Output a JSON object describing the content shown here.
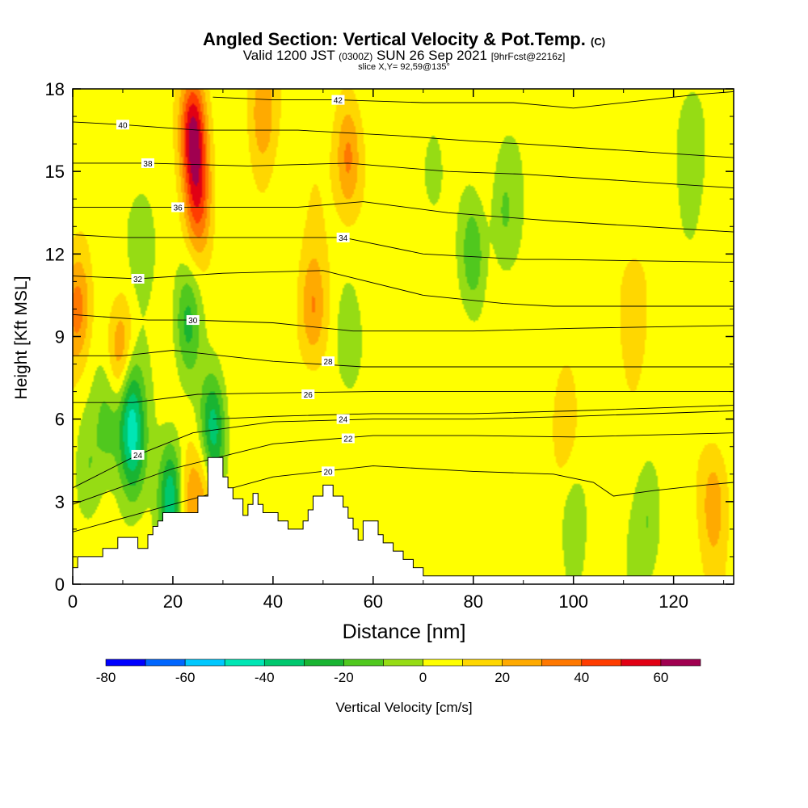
{
  "chart_data": {
    "type": "heatmap",
    "title": "Angled Section: Vertical Velocity & Pot.Temp.",
    "title_unit": "(C)",
    "subtitle_valid": "Valid 1200 JST",
    "subtitle_utc": "(0300Z)",
    "subtitle_date": "SUN 26 Sep 2021",
    "subtitle_fcst": "[9hrFcst@2216z]",
    "slice_label": "slice X,Y= 92,59@135°",
    "xlabel": "Distance [nm]",
    "ylabel": "Height [Kft MSL]",
    "xlim": [
      0,
      132
    ],
    "ylim": [
      0,
      18
    ],
    "x_ticks": [
      "0",
      "20",
      "40",
      "60",
      "80",
      "100",
      "120"
    ],
    "y_ticks": [
      "0",
      "3",
      "6",
      "9",
      "12",
      "15",
      "18"
    ],
    "colorbar": {
      "label": "Vertical Velocity [cm/s]",
      "tick_labels": [
        "-80",
        "-60",
        "-40",
        "-20",
        "0",
        "20",
        "40",
        "60"
      ],
      "bounds": [
        -80,
        -70,
        -60,
        -50,
        -40,
        -30,
        -20,
        -10,
        0,
        10,
        20,
        30,
        40,
        50,
        60,
        70
      ],
      "colors": [
        "#0000ff",
        "#0066ff",
        "#00c8ff",
        "#00e6b4",
        "#00c86e",
        "#19b432",
        "#50c81e",
        "#96dc14",
        "#ffff00",
        "#ffd700",
        "#ffaa00",
        "#ff7800",
        "#ff3c00",
        "#e10014",
        "#a00050",
        "#640096"
      ]
    },
    "background_w_cm_s": 5,
    "w_features": [
      {
        "x": 24,
        "y": 16.5,
        "w": 55
      },
      {
        "x": 25,
        "y": 14.0,
        "w": 35
      },
      {
        "x": 55,
        "y": 15.5,
        "w": 30
      },
      {
        "x": 38,
        "y": 17.2,
        "w": 22
      },
      {
        "x": 1,
        "y": 10.0,
        "w": 30
      },
      {
        "x": 10,
        "y": 8.0,
        "w": 42
      },
      {
        "x": 48,
        "y": 10.0,
        "w": 25
      },
      {
        "x": 22,
        "y": 2.8,
        "w": 32
      },
      {
        "x": 26,
        "y": 3.5,
        "w": 22
      },
      {
        "x": 80,
        "y": 12.0,
        "w": -25
      },
      {
        "x": 86,
        "y": 13.5,
        "w": -15
      },
      {
        "x": 55,
        "y": 8.8,
        "w": -18
      },
      {
        "x": 23,
        "y": 9.5,
        "w": -30
      },
      {
        "x": 11,
        "y": 7.0,
        "w": -40
      },
      {
        "x": 12,
        "y": 5.0,
        "w": -35
      },
      {
        "x": 20,
        "y": 3.0,
        "w": -55
      },
      {
        "x": 28,
        "y": 5.5,
        "w": -45
      },
      {
        "x": 3,
        "y": 4.0,
        "w": -15
      },
      {
        "x": 7,
        "y": 6.0,
        "w": -20
      },
      {
        "x": 14,
        "y": 12.5,
        "w": -18
      },
      {
        "x": 72,
        "y": 15.0,
        "w": -12
      },
      {
        "x": 124,
        "y": 16.0,
        "w": -12
      },
      {
        "x": 115,
        "y": 2.3,
        "w": -15
      },
      {
        "x": 100,
        "y": 2.0,
        "w": -12
      },
      {
        "x": 98,
        "y": 6.0,
        "w": 12
      },
      {
        "x": 112,
        "y": 10.0,
        "w": 10
      },
      {
        "x": 128,
        "y": 3.0,
        "w": 20
      }
    ],
    "theta_contours": [
      {
        "level": 20,
        "label_at": [
          51,
          4.1
        ],
        "pts": [
          [
            0,
            1.9
          ],
          [
            20,
            2.9
          ],
          [
            40,
            3.9
          ],
          [
            60,
            4.3
          ],
          [
            80,
            4.1
          ],
          [
            96,
            4.0
          ],
          [
            104,
            3.7
          ],
          [
            108,
            3.2
          ],
          [
            116,
            3.4
          ],
          [
            126,
            3.6
          ],
          [
            132,
            3.7
          ]
        ]
      },
      {
        "level": 22,
        "label_at": [
          55,
          5.3
        ],
        "pts": [
          [
            0,
            2.9
          ],
          [
            20,
            4.2
          ],
          [
            40,
            5.1
          ],
          [
            60,
            5.4
          ],
          [
            80,
            5.4
          ],
          [
            100,
            5.35
          ],
          [
            132,
            5.5
          ]
        ]
      },
      {
        "level": 24,
        "label_at": [
          13,
          4.7
        ],
        "pts": [
          [
            0,
            3.5
          ],
          [
            13,
            4.7
          ],
          [
            24,
            5.5
          ],
          [
            40,
            5.9
          ],
          [
            60,
            6.0
          ],
          [
            80,
            6.0
          ],
          [
            100,
            6.1
          ],
          [
            132,
            6.3
          ]
        ]
      },
      {
        "level": 24,
        "label_at": [
          54,
          6.0
        ],
        "pts": [
          [
            28,
            6.0
          ],
          [
            40,
            6.1
          ],
          [
            60,
            6.2
          ],
          [
            80,
            6.2
          ],
          [
            100,
            6.3
          ],
          [
            132,
            6.5
          ]
        ]
      },
      {
        "level": 26,
        "label_at": [
          47,
          6.9
        ],
        "pts": [
          [
            0,
            6.6
          ],
          [
            12,
            6.6
          ],
          [
            25,
            6.9
          ],
          [
            40,
            6.95
          ],
          [
            60,
            7.0
          ],
          [
            80,
            7.0
          ],
          [
            100,
            7.0
          ],
          [
            132,
            7.0
          ]
        ]
      },
      {
        "level": 28,
        "label_at": [
          51,
          8.1
        ],
        "pts": [
          [
            0,
            8.3
          ],
          [
            10,
            8.3
          ],
          [
            20,
            8.5
          ],
          [
            40,
            8.1
          ],
          [
            58,
            7.9
          ],
          [
            80,
            7.9
          ],
          [
            100,
            7.9
          ],
          [
            132,
            7.9
          ]
        ]
      },
      {
        "level": 30,
        "label_at": [
          24,
          9.6
        ],
        "pts": [
          [
            0,
            9.8
          ],
          [
            15,
            9.6
          ],
          [
            24,
            9.6
          ],
          [
            40,
            9.5
          ],
          [
            56,
            9.2
          ],
          [
            80,
            9.2
          ],
          [
            100,
            9.3
          ],
          [
            132,
            9.4
          ]
        ]
      },
      {
        "level": 32,
        "label_at": [
          13,
          11.1
        ],
        "pts": [
          [
            0,
            11.2
          ],
          [
            13,
            11.1
          ],
          [
            30,
            11.3
          ],
          [
            50,
            11.4
          ],
          [
            70,
            10.5
          ],
          [
            86,
            10.2
          ],
          [
            96,
            10.1
          ],
          [
            132,
            10.1
          ]
        ]
      },
      {
        "level": 34,
        "label_at": [
          54,
          12.6
        ],
        "pts": [
          [
            0,
            12.7
          ],
          [
            10,
            12.6
          ],
          [
            30,
            12.6
          ],
          [
            54,
            12.6
          ],
          [
            70,
            12.0
          ],
          [
            90,
            11.8
          ],
          [
            96,
            11.8
          ],
          [
            132,
            11.7
          ]
        ]
      },
      {
        "level": 36,
        "label_at": [
          21,
          13.7
        ],
        "pts": [
          [
            0,
            13.7
          ],
          [
            21,
            13.7
          ],
          [
            45,
            13.7
          ],
          [
            58,
            13.9
          ],
          [
            75,
            13.5
          ],
          [
            96,
            13.2
          ],
          [
            132,
            12.8
          ]
        ]
      },
      {
        "level": 38,
        "label_at": [
          15,
          15.3
        ],
        "pts": [
          [
            0,
            15.3
          ],
          [
            15,
            15.3
          ],
          [
            35,
            15.2
          ],
          [
            55,
            15.3
          ],
          [
            75,
            15.0
          ],
          [
            90,
            14.9
          ],
          [
            132,
            14.4
          ]
        ]
      },
      {
        "level": 40,
        "label_at": [
          10,
          16.7
        ],
        "pts": [
          [
            0,
            16.8
          ],
          [
            10,
            16.7
          ],
          [
            25,
            16.5
          ],
          [
            45,
            16.5
          ],
          [
            65,
            16.3
          ],
          [
            80,
            16.1
          ],
          [
            90,
            16.0
          ],
          [
            132,
            15.5
          ]
        ]
      },
      {
        "level": 42,
        "label_at": [
          53,
          17.6
        ],
        "pts": [
          [
            28,
            17.7
          ],
          [
            40,
            17.6
          ],
          [
            53,
            17.6
          ],
          [
            70,
            17.5
          ],
          [
            88,
            17.5
          ],
          [
            100,
            17.3
          ],
          [
            125,
            17.8
          ],
          [
            132,
            17.9
          ]
        ]
      }
    ],
    "terrain": [
      [
        0,
        0.6
      ],
      [
        1,
        0.6
      ],
      [
        1,
        1.0
      ],
      [
        6,
        1.0
      ],
      [
        6,
        1.3
      ],
      [
        9,
        1.3
      ],
      [
        9,
        1.7
      ],
      [
        13,
        1.7
      ],
      [
        13,
        1.3
      ],
      [
        15,
        1.3
      ],
      [
        15,
        1.8
      ],
      [
        16,
        1.8
      ],
      [
        16,
        2.1
      ],
      [
        17,
        2.1
      ],
      [
        17,
        2.3
      ],
      [
        18,
        2.3
      ],
      [
        18,
        2.6
      ],
      [
        25,
        2.6
      ],
      [
        25,
        3.2
      ],
      [
        27,
        3.2
      ],
      [
        27,
        4.6
      ],
      [
        30,
        4.6
      ],
      [
        30,
        3.9
      ],
      [
        31,
        3.9
      ],
      [
        31,
        3.5
      ],
      [
        32,
        3.5
      ],
      [
        32,
        3.1
      ],
      [
        34,
        3.1
      ],
      [
        34,
        2.5
      ],
      [
        35,
        2.5
      ],
      [
        35,
        2.9
      ],
      [
        36,
        2.9
      ],
      [
        36,
        3.3
      ],
      [
        37,
        3.3
      ],
      [
        37,
        2.9
      ],
      [
        38,
        2.9
      ],
      [
        38,
        2.6
      ],
      [
        41,
        2.6
      ],
      [
        41,
        2.3
      ],
      [
        43,
        2.3
      ],
      [
        43,
        2.0
      ],
      [
        46,
        2.0
      ],
      [
        46,
        2.3
      ],
      [
        47,
        2.3
      ],
      [
        47,
        2.7
      ],
      [
        48,
        2.7
      ],
      [
        48,
        3.2
      ],
      [
        50,
        3.2
      ],
      [
        50,
        3.6
      ],
      [
        52,
        3.6
      ],
      [
        52,
        3.2
      ],
      [
        54,
        3.2
      ],
      [
        54,
        2.8
      ],
      [
        55,
        2.8
      ],
      [
        55,
        2.4
      ],
      [
        56,
        2.4
      ],
      [
        56,
        2.0
      ],
      [
        57,
        2.0
      ],
      [
        57,
        1.6
      ],
      [
        58,
        1.6
      ],
      [
        58,
        2.3
      ],
      [
        61,
        2.3
      ],
      [
        61,
        1.8
      ],
      [
        62,
        1.8
      ],
      [
        62,
        1.5
      ],
      [
        64,
        1.5
      ],
      [
        64,
        1.2
      ],
      [
        66,
        1.2
      ],
      [
        66,
        0.9
      ],
      [
        68,
        0.9
      ],
      [
        68,
        0.6
      ],
      [
        70,
        0.6
      ],
      [
        70,
        0.3
      ],
      [
        132,
        0.3
      ],
      [
        132,
        0
      ]
    ]
  }
}
